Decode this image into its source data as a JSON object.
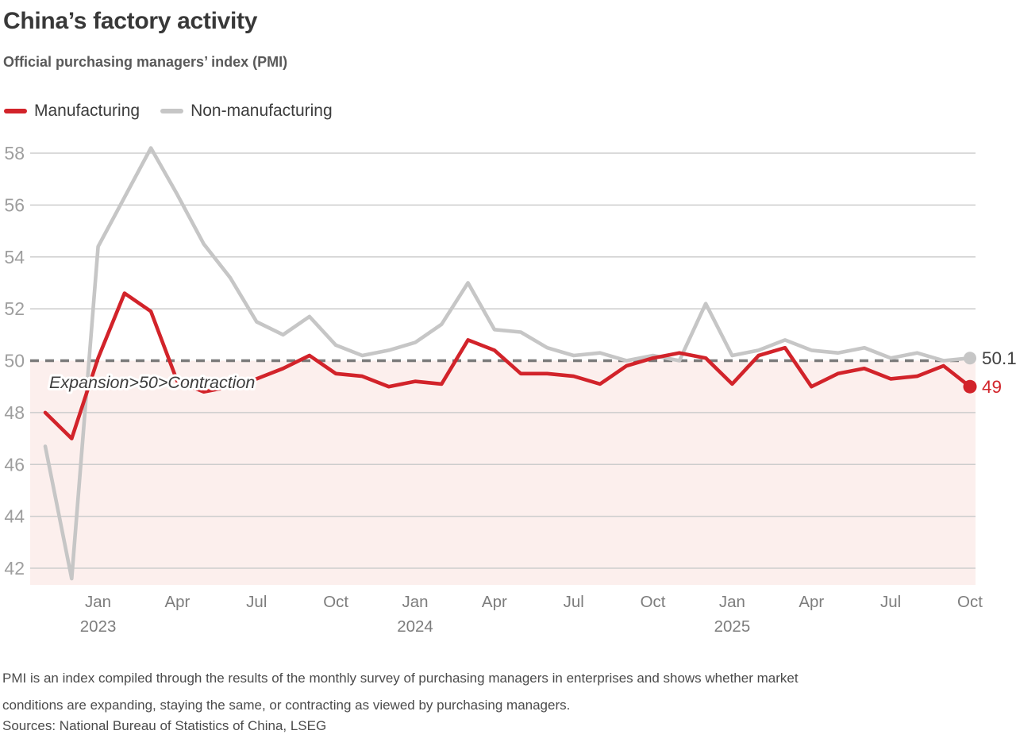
{
  "header": {
    "title": "China’s factory activity",
    "subtitle": "Official purchasing managers’ index (PMI)"
  },
  "legend": [
    {
      "label": "Manufacturing",
      "color": "#d2232a"
    },
    {
      "label": "Non-manufacturing",
      "color": "#c6c6c6"
    }
  ],
  "annotation": "Expansion>50>Contraction",
  "end_labels": {
    "non_manufacturing": {
      "text": "50.1",
      "color": "#404040"
    },
    "manufacturing": {
      "text": "49",
      "color": "#d2232a"
    }
  },
  "footer": {
    "note_lines": [
      "PMI is an index compiled through the results of the monthly survey of purchasing managers in enterprises and shows whether market",
      "conditions are expanding, staying the same, or contracting as viewed by purchasing managers."
    ],
    "sources": "Sources: National Bureau of Statistics of China, LSEG"
  },
  "chart_data": {
    "type": "line",
    "title": "China’s factory activity",
    "subtitle": "Official purchasing managers’ index (PMI)",
    "x": [
      "Nov 2022",
      "Dec 2022",
      "Jan 2023",
      "Feb 2023",
      "Mar 2023",
      "Apr 2023",
      "May 2023",
      "Jun 2023",
      "Jul 2023",
      "Aug 2023",
      "Sep 2023",
      "Oct 2023",
      "Nov 2023",
      "Dec 2023",
      "Jan 2024",
      "Feb 2024",
      "Mar 2024",
      "Apr 2024",
      "May 2024",
      "Jun 2024",
      "Jul 2024",
      "Aug 2024",
      "Sep 2024",
      "Oct 2024",
      "Nov 2024",
      "Dec 2024",
      "Jan 2025",
      "Feb 2025",
      "Mar 2025",
      "Apr 2025",
      "May 2025",
      "Jun 2025",
      "Jul 2025",
      "Aug 2025",
      "Sep 2025",
      "Oct 2025"
    ],
    "series": [
      {
        "name": "Manufacturing",
        "color": "#d2232a",
        "values": [
          48.0,
          47.0,
          50.1,
          52.6,
          51.9,
          49.2,
          48.8,
          49.0,
          49.3,
          49.7,
          50.2,
          49.5,
          49.4,
          49.0,
          49.2,
          49.1,
          50.8,
          50.4,
          49.5,
          49.5,
          49.4,
          49.1,
          49.8,
          50.1,
          50.3,
          50.1,
          49.1,
          50.2,
          50.5,
          49.0,
          49.5,
          49.7,
          49.3,
          49.4,
          49.8,
          49.0
        ]
      },
      {
        "name": "Non-manufacturing",
        "color": "#c6c6c6",
        "values": [
          46.7,
          41.6,
          54.4,
          56.3,
          58.2,
          56.4,
          54.5,
          53.2,
          51.5,
          51.0,
          51.7,
          50.6,
          50.2,
          50.4,
          50.7,
          51.4,
          53.0,
          51.2,
          51.1,
          50.5,
          50.2,
          50.3,
          50.0,
          50.2,
          50.0,
          52.2,
          50.2,
          50.4,
          50.8,
          50.4,
          50.3,
          50.5,
          50.1,
          50.3,
          50.0,
          50.1
        ]
      }
    ],
    "ylim": [
      41.4,
      58.4
    ],
    "yticks": [
      42,
      44,
      46,
      48,
      50,
      52,
      54,
      56,
      58
    ],
    "xticks": [
      {
        "index": 2,
        "label": "Jan",
        "year": "2023"
      },
      {
        "index": 5,
        "label": "Apr"
      },
      {
        "index": 8,
        "label": "Jul"
      },
      {
        "index": 11,
        "label": "Oct"
      },
      {
        "index": 14,
        "label": "Jan",
        "year": "2024"
      },
      {
        "index": 17,
        "label": "Apr"
      },
      {
        "index": 20,
        "label": "Jul"
      },
      {
        "index": 23,
        "label": "Oct"
      },
      {
        "index": 26,
        "label": "Jan",
        "year": "2025"
      },
      {
        "index": 29,
        "label": "Apr"
      },
      {
        "index": 32,
        "label": "Jul"
      },
      {
        "index": 35,
        "label": "Oct"
      }
    ],
    "reference_line": {
      "value": 50,
      "style": "dashed",
      "color": "#7a7a7a",
      "label": "Expansion>50>Contraction"
    },
    "shaded_region": {
      "below": 50,
      "color": "#fcefed"
    },
    "grid": "horizontal",
    "gridline_color": "#cdcdcd",
    "axis_label_color": "#9e9e9e",
    "xtick_color": "#7d7d7d",
    "legend_position": "top-left",
    "end_point_labels": {
      "Manufacturing": "49",
      "Non-manufacturing": "50.1"
    }
  }
}
